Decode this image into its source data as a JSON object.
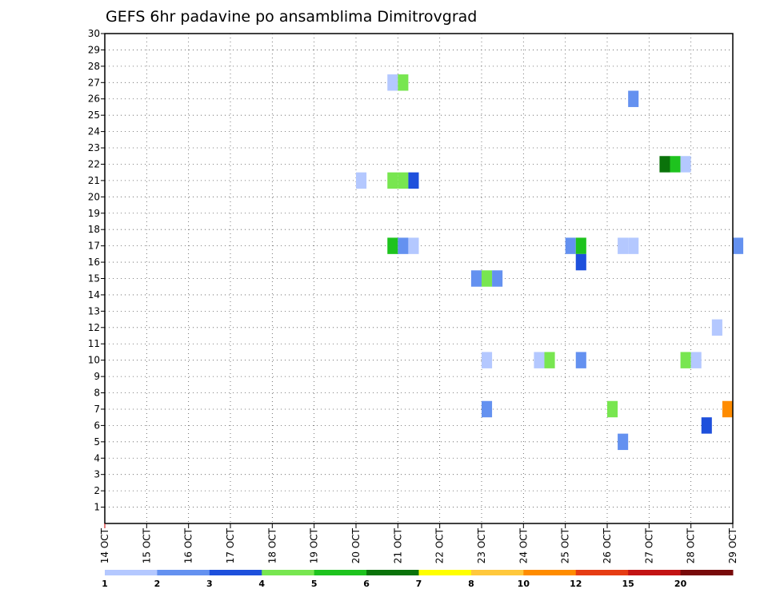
{
  "chart_data": {
    "type": "heatmap",
    "title": "GEFS 6hr padavine po ansamblima Dimitrovgrad",
    "xlabel": "",
    "ylabel": "",
    "x_ticks": [
      "14 OCT",
      "15 OCT",
      "16 OCT",
      "17 OCT",
      "18 OCT",
      "19 OCT",
      "20 OCT",
      "21 OCT",
      "22 OCT",
      "23 OCT",
      "24 OCT",
      "25 OCT",
      "26 OCT",
      "27 OCT",
      "28 OCT",
      "29 OCT"
    ],
    "y_ticks": [
      1,
      2,
      3,
      4,
      5,
      6,
      7,
      8,
      9,
      10,
      11,
      12,
      13,
      14,
      15,
      16,
      17,
      18,
      19,
      20,
      21,
      22,
      23,
      24,
      25,
      26,
      27,
      28,
      29,
      30
    ],
    "xlim_days": [
      14,
      29
    ],
    "ylim": [
      0,
      30
    ],
    "time_step_hours": 6,
    "grid": true,
    "legend_position": "bottom",
    "colorbar": {
      "labels": [
        "1",
        "2",
        "3",
        "4",
        "5",
        "6",
        "7",
        "8",
        "10",
        "12",
        "15",
        "20"
      ],
      "colors": [
        "#b4c8ff",
        "#6491f0",
        "#1e50dc",
        "#78e650",
        "#1ec31e",
        "#0a730a",
        "#ffff00",
        "#ffc83c",
        "#ff8c00",
        "#e63c14",
        "#c31414",
        "#780a0a"
      ]
    },
    "cells": [
      {
        "member": 27,
        "time": "20 OCT 18Z",
        "color": "#b4c8ff"
      },
      {
        "member": 27,
        "time": "21 OCT 00Z",
        "color": "#78e650"
      },
      {
        "member": 26,
        "time": "26 OCT 12Z",
        "color": "#6491f0"
      },
      {
        "member": 22,
        "time": "27 OCT 06Z",
        "color": "#0a730a"
      },
      {
        "member": 22,
        "time": "27 OCT 12Z",
        "color": "#1ec31e"
      },
      {
        "member": 22,
        "time": "27 OCT 18Z",
        "color": "#b4c8ff"
      },
      {
        "member": 21,
        "time": "20 OCT 00Z",
        "color": "#b4c8ff"
      },
      {
        "member": 21,
        "time": "20 OCT 18Z",
        "color": "#78e650"
      },
      {
        "member": 21,
        "time": "21 OCT 00Z",
        "color": "#78e650"
      },
      {
        "member": 21,
        "time": "21 OCT 06Z",
        "color": "#1e50dc"
      },
      {
        "member": 17,
        "time": "20 OCT 18Z",
        "color": "#1ec31e"
      },
      {
        "member": 17,
        "time": "21 OCT 00Z",
        "color": "#6491f0"
      },
      {
        "member": 17,
        "time": "21 OCT 06Z",
        "color": "#b4c8ff"
      },
      {
        "member": 17,
        "time": "25 OCT 00Z",
        "color": "#6491f0"
      },
      {
        "member": 17,
        "time": "25 OCT 06Z",
        "color": "#1ec31e"
      },
      {
        "member": 17,
        "time": "26 OCT 06Z",
        "color": "#b4c8ff"
      },
      {
        "member": 17,
        "time": "26 OCT 12Z",
        "color": "#b4c8ff"
      },
      {
        "member": 17,
        "time": "29 OCT 00Z",
        "color": "#6491f0"
      },
      {
        "member": 16,
        "time": "25 OCT 06Z",
        "color": "#1e50dc"
      },
      {
        "member": 15,
        "time": "22 OCT 18Z",
        "color": "#6491f0"
      },
      {
        "member": 15,
        "time": "23 OCT 00Z",
        "color": "#78e650"
      },
      {
        "member": 15,
        "time": "23 OCT 06Z",
        "color": "#6491f0"
      },
      {
        "member": 12,
        "time": "28 OCT 12Z",
        "color": "#b4c8ff"
      },
      {
        "member": 10,
        "time": "23 OCT 00Z",
        "color": "#b4c8ff"
      },
      {
        "member": 10,
        "time": "24 OCT 06Z",
        "color": "#b4c8ff"
      },
      {
        "member": 10,
        "time": "24 OCT 12Z",
        "color": "#78e650"
      },
      {
        "member": 10,
        "time": "25 OCT 06Z",
        "color": "#6491f0"
      },
      {
        "member": 10,
        "time": "27 OCT 18Z",
        "color": "#78e650"
      },
      {
        "member": 10,
        "time": "28 OCT 00Z",
        "color": "#b4c8ff"
      },
      {
        "member": 7,
        "time": "23 OCT 00Z",
        "color": "#6491f0"
      },
      {
        "member": 7,
        "time": "26 OCT 00Z",
        "color": "#78e650"
      },
      {
        "member": 7,
        "time": "28 OCT 18Z",
        "color": "#ff8c00"
      },
      {
        "member": 6,
        "time": "28 OCT 06Z",
        "color": "#1e50dc"
      },
      {
        "member": 5,
        "time": "26 OCT 06Z",
        "color": "#6491f0"
      }
    ]
  }
}
